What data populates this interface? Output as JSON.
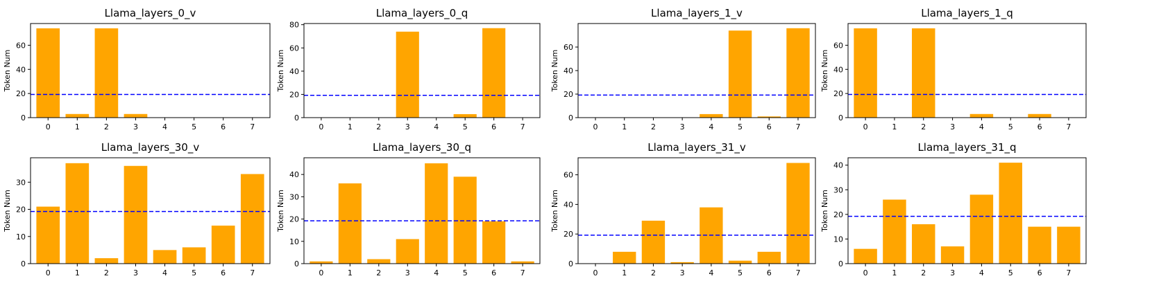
{
  "chart_data": [
    {
      "type": "bar",
      "title": "Llama_layers_0_v",
      "categories": [
        "0",
        "1",
        "2",
        "3",
        "4",
        "5",
        "6",
        "7"
      ],
      "values": [
        74,
        3,
        74,
        3,
        0,
        0,
        0,
        0
      ],
      "ylabel": "Token Num",
      "ylim": [
        0,
        78
      ],
      "yticks": [
        0,
        20,
        40,
        60
      ],
      "threshold": 19.2,
      "bar_color": "#ffa500",
      "line_color": "#0000ff"
    },
    {
      "type": "bar",
      "title": "Llama_layers_0_q",
      "categories": [
        "0",
        "1",
        "2",
        "3",
        "4",
        "5",
        "6",
        "7"
      ],
      "values": [
        0,
        0,
        0,
        74,
        0,
        3,
        77,
        0
      ],
      "ylabel": "Token Num",
      "ylim": [
        0,
        81
      ],
      "yticks": [
        0,
        20,
        40,
        60,
        80
      ],
      "threshold": 19.2,
      "bar_color": "#ffa500",
      "line_color": "#0000ff"
    },
    {
      "type": "bar",
      "title": "Llama_layers_1_v",
      "categories": [
        "0",
        "1",
        "2",
        "3",
        "4",
        "5",
        "6",
        "7"
      ],
      "values": [
        0,
        0,
        0,
        0,
        3,
        74,
        1,
        76
      ],
      "ylabel": "Token Num",
      "ylim": [
        0,
        80
      ],
      "yticks": [
        0,
        20,
        40,
        60
      ],
      "threshold": 19.2,
      "bar_color": "#ffa500",
      "line_color": "#0000ff"
    },
    {
      "type": "bar",
      "title": "Llama_layers_1_q",
      "categories": [
        "0",
        "1",
        "2",
        "3",
        "4",
        "5",
        "6",
        "7"
      ],
      "values": [
        74,
        0,
        74,
        0,
        3,
        0,
        3,
        0
      ],
      "ylabel": "Token Num",
      "ylim": [
        0,
        78
      ],
      "yticks": [
        0,
        20,
        40,
        60
      ],
      "threshold": 19.2,
      "bar_color": "#ffa500",
      "line_color": "#0000ff"
    },
    {
      "type": "bar",
      "title": "Llama_layers_30_v",
      "categories": [
        "0",
        "1",
        "2",
        "3",
        "4",
        "5",
        "6",
        "7"
      ],
      "values": [
        21,
        37,
        2,
        36,
        5,
        6,
        14,
        33
      ],
      "ylabel": "Token Num",
      "ylim": [
        0,
        39
      ],
      "yticks": [
        0,
        10,
        20,
        30
      ],
      "threshold": 19.2,
      "bar_color": "#ffa500",
      "line_color": "#0000ff"
    },
    {
      "type": "bar",
      "title": "Llama_layers_30_q",
      "categories": [
        "0",
        "1",
        "2",
        "3",
        "4",
        "5",
        "6",
        "7"
      ],
      "values": [
        1,
        36,
        2,
        11,
        45,
        39,
        19,
        1
      ],
      "ylabel": "Token Num",
      "ylim": [
        0,
        47.5
      ],
      "yticks": [
        0,
        10,
        20,
        30,
        40
      ],
      "threshold": 19.2,
      "bar_color": "#ffa500",
      "line_color": "#0000ff"
    },
    {
      "type": "bar",
      "title": "Llama_layers_31_v",
      "categories": [
        "0",
        "1",
        "2",
        "3",
        "4",
        "5",
        "6",
        "7"
      ],
      "values": [
        0,
        8,
        29,
        1,
        38,
        2,
        8,
        68
      ],
      "ylabel": "Token Num",
      "ylim": [
        0,
        71.5
      ],
      "yticks": [
        0,
        20,
        40,
        60
      ],
      "threshold": 19.2,
      "bar_color": "#ffa500",
      "line_color": "#0000ff"
    },
    {
      "type": "bar",
      "title": "Llama_layers_31_q",
      "categories": [
        "0",
        "1",
        "2",
        "3",
        "4",
        "5",
        "6",
        "7"
      ],
      "values": [
        6,
        26,
        16,
        7,
        28,
        41,
        15,
        15
      ],
      "ylabel": "Token Num",
      "ylim": [
        0,
        43
      ],
      "yticks": [
        0,
        10,
        20,
        30,
        40
      ],
      "threshold": 19.2,
      "bar_color": "#ffa500",
      "line_color": "#0000ff"
    }
  ]
}
